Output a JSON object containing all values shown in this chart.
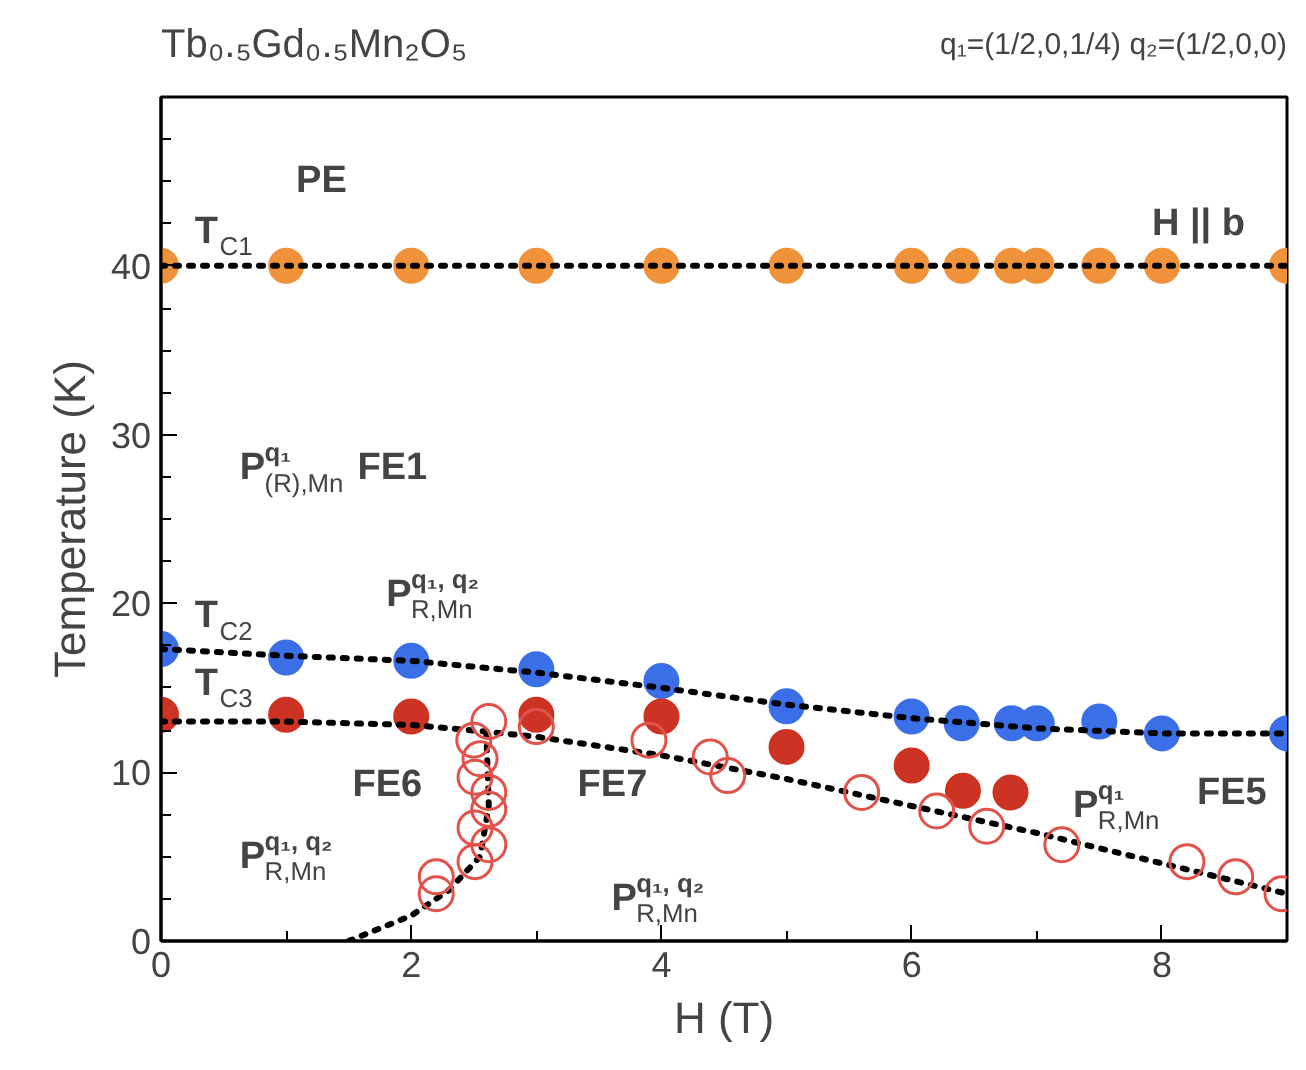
{
  "chart_data": {
    "type": "scatter",
    "title": "Tb₀.₅Gd₀.₅Mn₂O₅",
    "subtitle": "q₁=(1/2,0,1/4) q₂=(1/2,0,0)",
    "xlabel": "H (T)",
    "ylabel": "Temperature (K)",
    "xlim": [
      0,
      9
    ],
    "ylim": [
      0,
      50
    ],
    "xticks": [
      0,
      2,
      4,
      6,
      8
    ],
    "yticks": [
      0,
      10,
      20,
      30,
      40
    ],
    "grid": false,
    "marker": "circle",
    "series": [
      {
        "type": "line",
        "line_style": "dotted",
        "marker": "none",
        "color": "#000000",
        "x": [
          0,
          9
        ],
        "values": [
          40,
          40
        ]
      },
      {
        "type": "line",
        "line_style": "dotted",
        "marker": "none",
        "color": "#000000",
        "x": [
          0,
          1,
          2,
          3,
          4,
          5,
          6,
          7,
          8,
          9
        ],
        "values": [
          17.3,
          16.9,
          16.6,
          15.9,
          15.0,
          14.0,
          13.2,
          12.6,
          12.3,
          12.3
        ]
      },
      {
        "type": "line",
        "line_style": "dotted",
        "marker": "none",
        "color": "#000000",
        "x": [
          0,
          1,
          2,
          2.6,
          3,
          4,
          5,
          6,
          7,
          8,
          9
        ],
        "values": [
          13.0,
          13.0,
          12.8,
          12.4,
          12.1,
          11.0,
          9.6,
          8.0,
          6.4,
          4.6,
          2.8
        ]
      },
      {
        "type": "line",
        "line_style": "dotted",
        "marker": "none",
        "color": "#000000",
        "x": [
          1.5,
          2,
          2.3,
          2.55,
          2.62,
          2.6
        ],
        "values": [
          0,
          1.5,
          3,
          5,
          8,
          12.4
        ]
      },
      {
        "color": "#f0923a",
        "x": [
          0,
          1,
          2,
          3,
          4,
          5,
          6,
          6.4,
          6.8,
          7,
          7.5,
          8,
          9
        ],
        "values": [
          40,
          40,
          40,
          40,
          40,
          40,
          40,
          40,
          40,
          40,
          40,
          40,
          40
        ]
      },
      {
        "color": "#3b6fe8",
        "x": [
          0,
          1,
          2,
          3,
          4,
          5,
          6,
          6.4,
          6.8,
          7,
          7.5,
          8,
          9
        ],
        "values": [
          17.3,
          16.8,
          16.6,
          16.1,
          15.4,
          13.9,
          13.3,
          12.9,
          12.9,
          12.9,
          13.0,
          12.3,
          12.3
        ]
      },
      {
        "color": "#e0524a",
        "marker": "open circle",
        "x": [
          3,
          3.9,
          2.62,
          2.5,
          2.55,
          2.51,
          2.62,
          2.62,
          2.51,
          2.62,
          2.51,
          2.2,
          2.2,
          4.39,
          4.53,
          5.6,
          6.2,
          6.6,
          7.2,
          8.2,
          8.59,
          8.96
        ],
        "values": [
          12.7,
          11.9,
          13.0,
          11.9,
          10.8,
          9.7,
          8.8,
          7.8,
          6.7,
          5.7,
          4.7,
          3.8,
          2.8,
          10.9,
          9.8,
          8.8,
          7.7,
          6.8,
          5.7,
          4.7,
          3.8,
          2.8
        ]
      },
      {
        "color": "#cc3322",
        "x": [
          0,
          1,
          2,
          3,
          4,
          5,
          6,
          6.41,
          6.79
        ],
        "values": [
          13.4,
          13.4,
          13.3,
          13.4,
          13.3,
          11.5,
          10.4,
          8.9,
          8.8
        ]
      }
    ],
    "annotations": [
      "PE",
      "H || b",
      "T$_{C1}$",
      "T$_{C2}$",
      "T$_{C3}$",
      "P$^{q₁}$$_{(R),Mn}$ FE1",
      "P$^{q₁, q₂}$$_{R,Mn}$",
      "FE6",
      "FE7",
      "P$^{q₁, q₂}$$_{R,Mn}$",
      "P$^{q₁, q₂}$$_{R,Mn}$",
      "P$^{q₁}$$_{R,Mn}$",
      "FE5"
    ]
  }
}
